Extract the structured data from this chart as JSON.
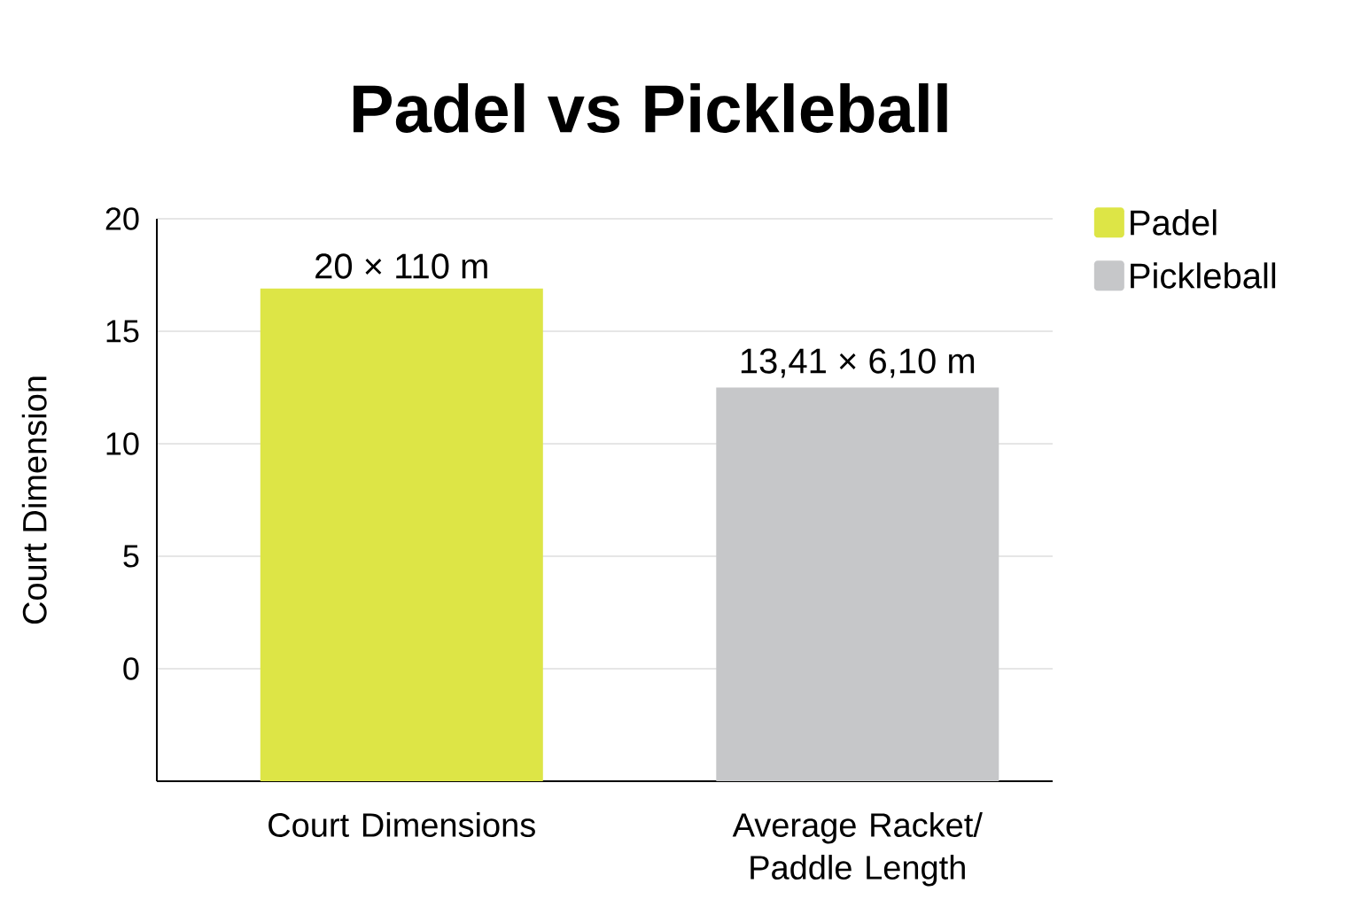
{
  "chart_data": {
    "type": "bar",
    "title": "Padel vs Pickleball",
    "ylabel": "Court Dimension",
    "categories": [
      "Court Dimensions",
      "Average Racket/ Paddle Length"
    ],
    "series": [
      {
        "name": "Padel",
        "color": "#dde546",
        "values": [
          21.9,
          null
        ],
        "base": [
          -5,
          null
        ]
      },
      {
        "name": "Pickleball",
        "color": "#c6c7c9",
        "values": [
          null,
          17.5
        ],
        "base": [
          null,
          -5
        ]
      }
    ],
    "annotations": [
      {
        "text": "20 × 110 m",
        "x": "Court Dimensions",
        "y": 16.9
      },
      {
        "text": "13,41 × 6,10 m",
        "x": "Average Racket/ Paddle Length",
        "y": 12.5
      }
    ],
    "ylim": [
      -5,
      20
    ],
    "yticks": [
      0,
      5,
      10,
      15,
      20
    ],
    "grid": "y",
    "legend": "top right"
  }
}
